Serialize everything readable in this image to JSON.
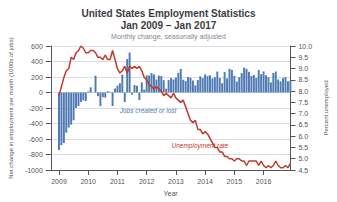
{
  "chart_data": {
    "type": "bar",
    "title": "United States Employment Statistics\nJan 2009 – Jan 2017",
    "subtitle": "Monthly change, seasonally adjusted",
    "xlabel": "Year",
    "ylabel": "Net change in employment per month (1000s of jobs)",
    "y2label": "Percent unemployed",
    "x": [
      2009,
      2009.0833333333333,
      2009.1666666666667,
      2009.25,
      2009.3333333333333,
      2009.4166666666667,
      2009.5,
      2009.5833333333333,
      2009.6666666666667,
      2009.75,
      2009.8333333333333,
      2009.9166666666667,
      2010,
      2010.0833333333333,
      2010.1666666666667,
      2010.25,
      2010.3333333333333,
      2010.4166666666667,
      2010.5,
      2010.5833333333333,
      2010.6666666666667,
      2010.75,
      2010.8333333333333,
      2010.9166666666667,
      2011,
      2011.0833333333333,
      2011.1666666666667,
      2011.25,
      2011.3333333333333,
      2011.4166666666667,
      2011.5,
      2011.5833333333333,
      2011.6666666666667,
      2011.75,
      2011.8333333333333,
      2011.9166666666667,
      2012,
      2012.0833333333333,
      2012.1666666666667,
      2012.25,
      2012.3333333333333,
      2012.4166666666667,
      2012.5,
      2012.5833333333333,
      2012.6666666666667,
      2012.75,
      2012.8333333333333,
      2012.9166666666667,
      2013,
      2013.0833333333333,
      2013.1666666666667,
      2013.25,
      2013.3333333333333,
      2013.4166666666667,
      2013.5,
      2013.5833333333333,
      2013.6666666666667,
      2013.75,
      2013.8333333333333,
      2013.9166666666667,
      2014,
      2014.0833333333333,
      2014.1666666666667,
      2014.25,
      2014.3333333333333,
      2014.4166666666667,
      2014.5,
      2014.5833333333333,
      2014.6666666666667,
      2014.75,
      2014.8333333333333,
      2014.9166666666667,
      2015,
      2015.0833333333333,
      2015.1666666666667,
      2015.25,
      2015.3333333333333,
      2015.4166666666667,
      2015.5,
      2015.5833333333333,
      2015.6666666666667,
      2015.75,
      2015.8333333333333,
      2015.9166666666667,
      2016,
      2016.0833333333333,
      2016.1666666666667,
      2016.25,
      2016.3333333333333,
      2016.4166666666667,
      2016.5,
      2016.5833333333333,
      2016.6666666666667,
      2016.75,
      2016.8333333333333,
      2016.9166666666667
    ],
    "xlim": [
      2008.72,
      2016.92
    ],
    "xticks": [
      2009,
      2010,
      2011,
      2012,
      2013,
      2014,
      2015,
      2016
    ],
    "ylim": [
      -1000,
      600
    ],
    "yticks": [
      -1000,
      -800,
      -600,
      -400,
      -200,
      0,
      200,
      400,
      600
    ],
    "y2lim": [
      4.5,
      10
    ],
    "y2ticks": [
      4.5,
      {
        "value": 5.0,
        "label": "5.0"
      },
      5.5,
      {
        "value": 6.0,
        "label": "6.0"
      },
      6.5,
      {
        "value": 7.0,
        "label": "7.0"
      },
      7.5,
      {
        "value": 8.0,
        "label": "8.0"
      },
      8.5,
      {
        "value": 9.0,
        "label": "9.0"
      },
      9.5,
      {
        "value": 10.0,
        "label": "10.0"
      }
    ],
    "grid": true,
    "series": [
      {
        "type": "bar",
        "color": "#4f7ab3",
        "values": [
          -741,
          -681,
          -652,
          -518,
          -452,
          -413,
          -358,
          -201,
          -175,
          -122,
          -100,
          -109,
          14,
          67,
          -3,
          217,
          -47,
          -175,
          -61,
          -66,
          18,
          9,
          -175,
          52,
          88,
          119,
          230,
          -123,
          432,
          516,
          -28,
          97,
          88,
          -97,
          131,
          37,
          221,
          220,
          251,
          233,
          168,
          217,
          211,
          159,
          49,
          160,
          186,
          168,
          194,
          254,
          303,
          165,
          148,
          201,
          189,
          155,
          93,
          161,
          209,
          186,
          234,
          212,
          221,
          181,
          198,
          270,
          188,
          119,
          264,
          181,
          305,
          291,
          216,
          141,
          197,
          252,
          321,
          305,
          267,
          213,
          225,
          186,
          291,
          237,
          272,
          221,
          196,
          131,
          252,
          271,
          168,
          144,
          187,
          198,
          145,
          151
        ]
      },
      {
        "type": "line",
        "axis": "y2",
        "color": "#c0392b",
        "values": [
          7.8,
          8.2,
          8.6,
          8.9,
          9.0,
          9.5,
          9.4,
          9.7,
          9.8,
          10.0,
          9.9,
          9.7,
          9.7,
          9.8,
          9.8,
          9.7,
          9.5,
          9.5,
          9.4,
          9.6,
          9.4,
          9.4,
          9.8,
          9.4,
          9.0,
          8.8,
          8.9,
          9.1,
          8.8,
          9.1,
          9.0,
          9.1,
          9.0,
          9.1,
          8.9,
          8.6,
          8.5,
          8.3,
          8.2,
          8.1,
          8.2,
          8.1,
          8.0,
          7.8,
          7.9,
          7.8,
          7.7,
          7.9,
          7.7,
          7.6,
          7.5,
          7.6,
          7.3,
          7.0,
          6.7,
          6.6,
          6.7,
          6.3,
          6.3,
          6.1,
          6.2,
          6.1,
          5.9,
          5.7,
          5.5,
          5.5,
          5.3,
          5.3,
          5.1,
          5.1,
          5.0,
          5.0,
          4.9,
          5.0,
          5.0,
          4.9,
          4.9,
          4.7,
          4.9,
          4.9,
          4.9,
          4.9,
          4.7,
          4.9,
          4.7,
          4.6,
          4.7,
          4.6,
          4.7,
          4.9,
          4.7,
          4.6,
          4.6,
          4.7,
          4.6,
          4.8
        ]
      }
    ],
    "annotations": [
      "Jobs created or lost",
      "Unemployment rate"
    ]
  }
}
